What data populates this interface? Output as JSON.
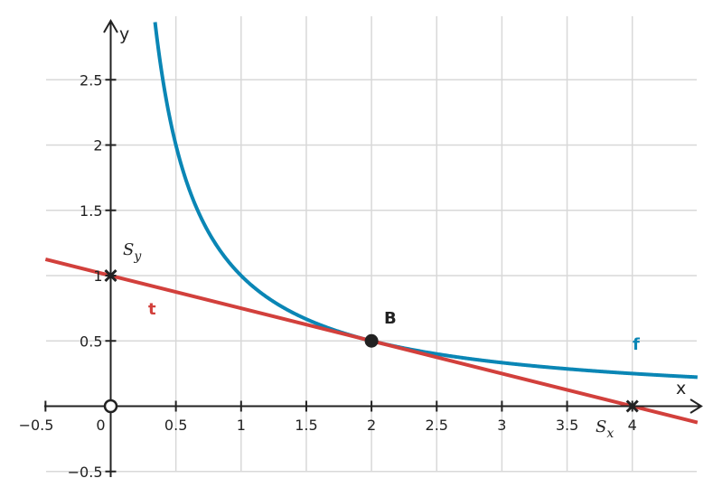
{
  "chart_data": {
    "type": "line",
    "title": "",
    "xlabel": "x",
    "ylabel": "y",
    "xlim": [
      -0.5,
      4.5
    ],
    "ylim": [
      -0.5,
      2.95
    ],
    "grid": true,
    "x_ticks": [
      {
        "value": -0.5,
        "label": "−0.5"
      },
      {
        "value": 0,
        "label": "0"
      },
      {
        "value": 0.5,
        "label": "0.5"
      },
      {
        "value": 1,
        "label": "1"
      },
      {
        "value": 1.5,
        "label": "1.5"
      },
      {
        "value": 2,
        "label": "2"
      },
      {
        "value": 2.5,
        "label": "2.5"
      },
      {
        "value": 3,
        "label": "3"
      },
      {
        "value": 3.5,
        "label": "3.5"
      },
      {
        "value": 4,
        "label": "4"
      }
    ],
    "y_ticks": [
      {
        "value": -0.5,
        "label": "−0.5"
      },
      {
        "value": 0.5,
        "label": "0.5"
      },
      {
        "value": 1,
        "label": "1"
      },
      {
        "value": 1.5,
        "label": "1.5"
      },
      {
        "value": 2,
        "label": "2"
      },
      {
        "value": 2.5,
        "label": "2.5"
      }
    ],
    "series": [
      {
        "name": "f",
        "expression": "y = 1/x",
        "domain": [
          0.34,
          4.5
        ],
        "color": "#0a86b5"
      },
      {
        "name": "t",
        "expression": "y = 1 - x/4",
        "domain": [
          -0.5,
          4.5
        ],
        "color": "#d2403c"
      }
    ],
    "points": [
      {
        "name": "B",
        "x": 2,
        "y": 0.5,
        "marker": "filled-circle",
        "color": "#222222"
      },
      {
        "name": "Sy",
        "x": 0,
        "y": 1,
        "marker": "cross",
        "color": "#222222"
      },
      {
        "name": "Sx",
        "x": 4,
        "y": 0,
        "marker": "cross",
        "color": "#222222"
      },
      {
        "name": "origin",
        "x": 0,
        "y": 0,
        "marker": "open-circle",
        "color": "#222222"
      }
    ],
    "labels": {
      "f": "f",
      "t": "t",
      "B": "B",
      "Sy_base": "S",
      "Sy_sub": "y",
      "Sx_base": "S",
      "Sx_sub": "x"
    }
  }
}
